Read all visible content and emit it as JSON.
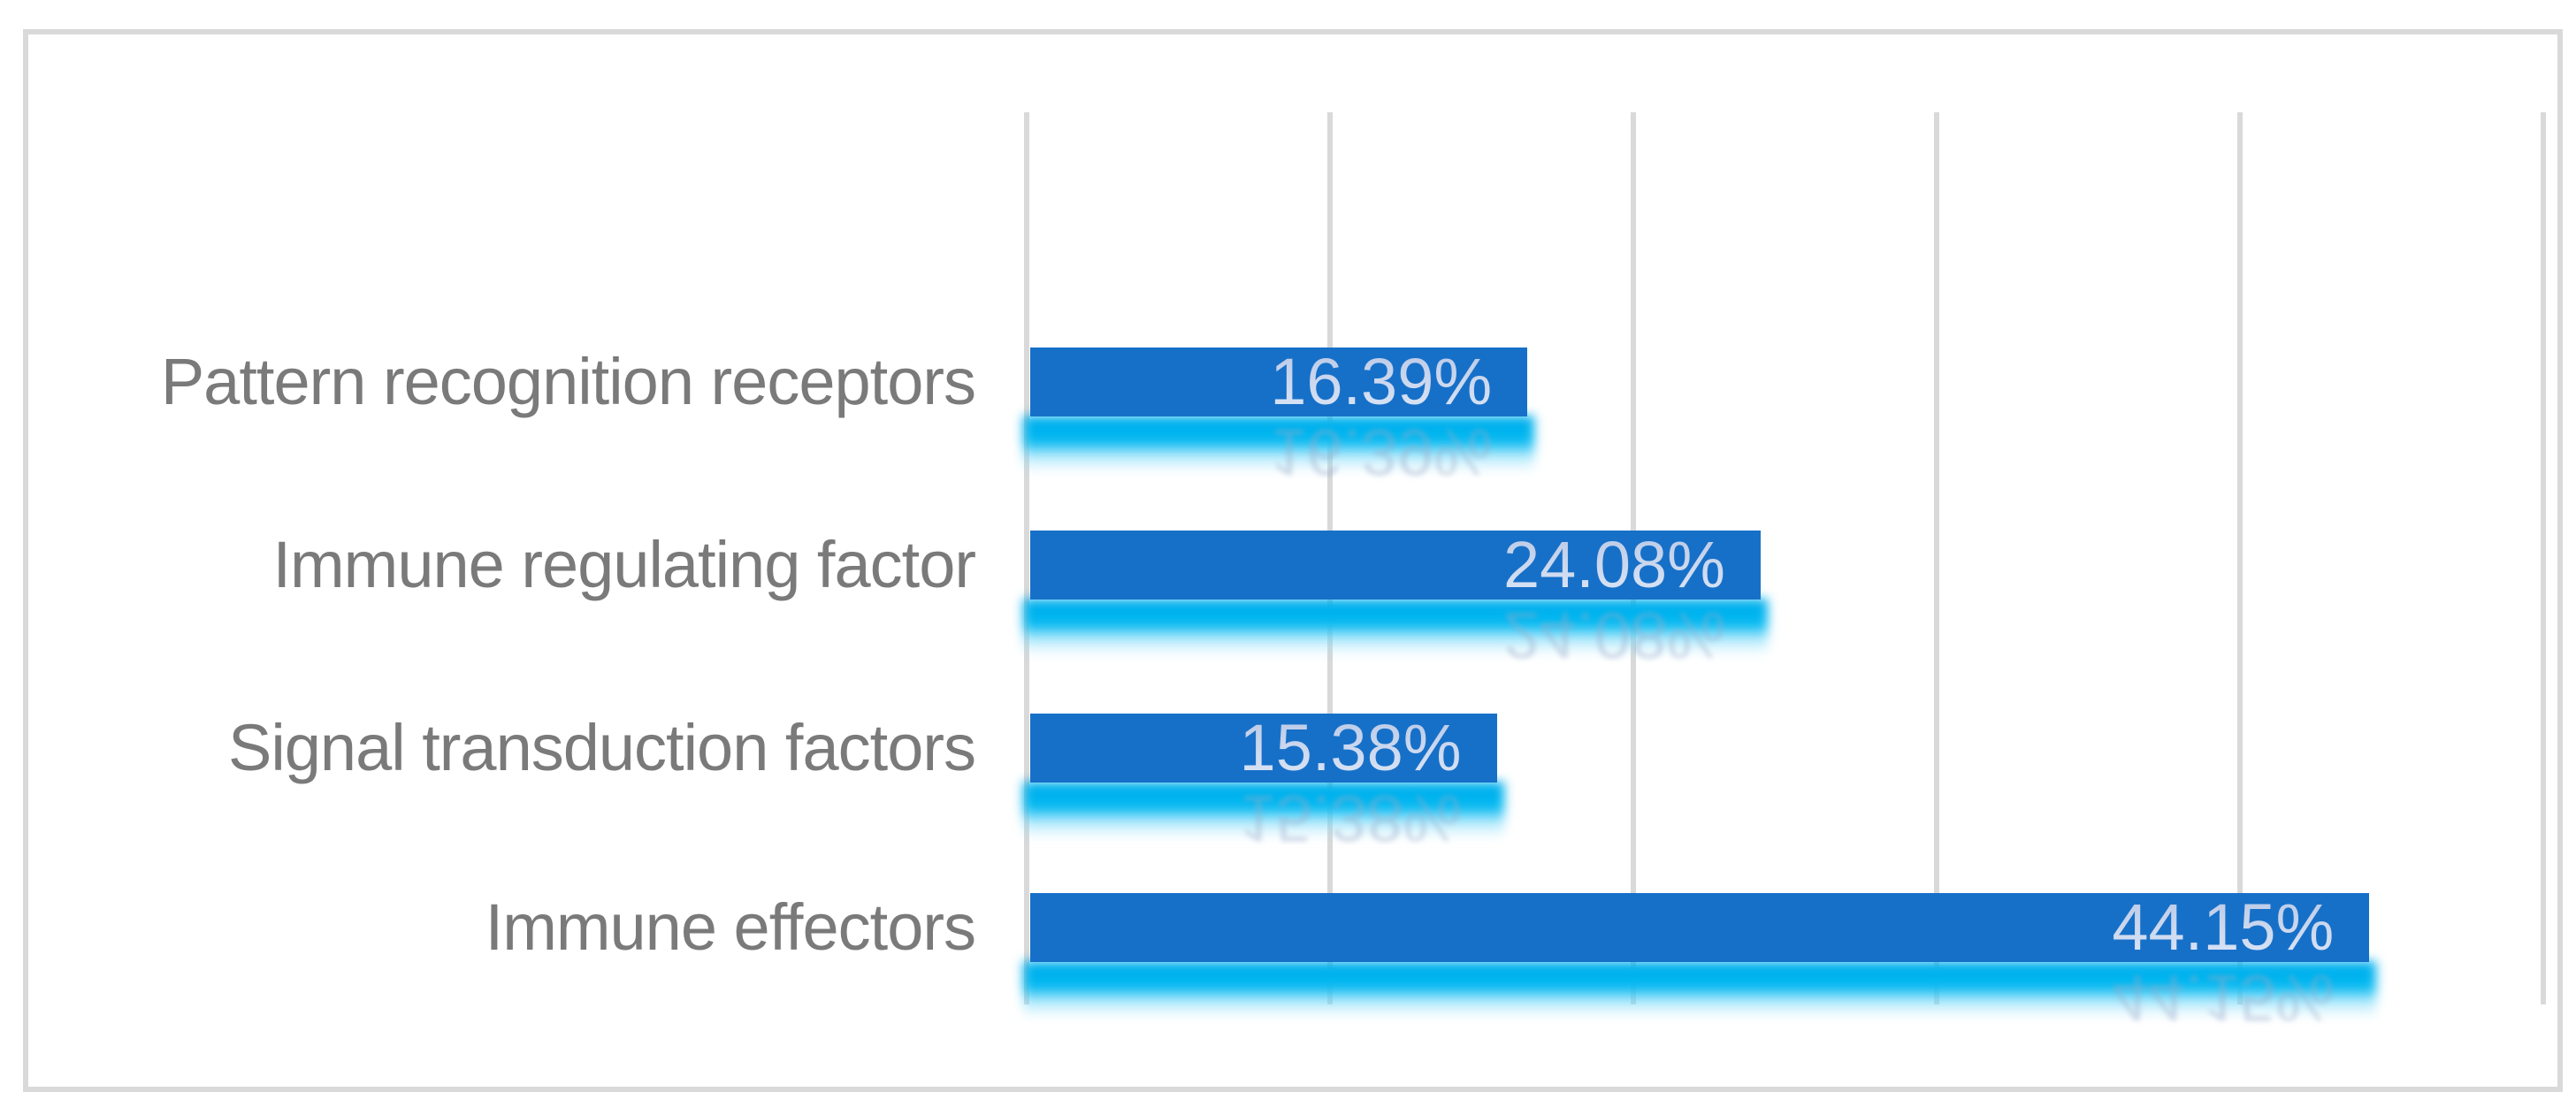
{
  "chart_data": {
    "type": "bar",
    "orientation": "horizontal",
    "title": "",
    "xlabel": "",
    "ylabel": "",
    "categories": [
      "Pattern recognition receptors",
      "Immune regulating factor",
      "Signal transduction factors",
      "Immune effectors"
    ],
    "values": [
      16.39,
      24.08,
      15.38,
      44.15
    ],
    "value_labels": [
      "16.39%",
      "24.08%",
      "15.38%",
      "44.15%"
    ],
    "xlim": [
      0,
      50
    ],
    "gridline_step": 10,
    "grid": "vertical gridlines, no tick labels",
    "legend": "none",
    "data_label_position": "inside-end",
    "effects": "cyan glow reflection below each bar with faded mirrored value text",
    "colors": {
      "bar_fill": "#1770C8",
      "reflection_glow": "#00AEEC",
      "gridline": "#D9D9D9",
      "frame_border": "#D9D9D9",
      "category_label": "#7A7A7A",
      "value_label": "#C7D5ED",
      "background": "#FFFFFF"
    }
  }
}
